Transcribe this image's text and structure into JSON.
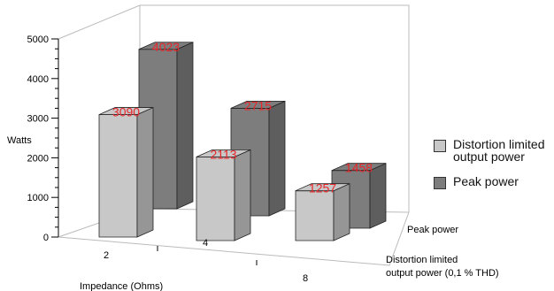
{
  "chart_data": {
    "type": "bar",
    "categories": [
      "2",
      "4",
      "8"
    ],
    "series": [
      {
        "name": "Distortion limited output power",
        "values": [
          3090,
          2113,
          1257
        ]
      },
      {
        "name": "Peak power",
        "values": [
          4023,
          2715,
          1458
        ]
      }
    ],
    "data_labels": [
      [
        "3090",
        "2113",
        "1257"
      ],
      [
        "4023",
        "2715",
        "1458"
      ]
    ],
    "y_ticks": [
      "0",
      "1000",
      "2000",
      "3000",
      "4000",
      "5000"
    ],
    "ylim": [
      0,
      5000
    ],
    "ylabel": "Watts",
    "xlabel": "Impedance (Ohms)",
    "depth_labels": [
      "Peak power",
      "Distortion limited\noutput power (0,1 % THD)"
    ],
    "grid": false,
    "legend_position": "right",
    "colors": {
      "front_bar": "#c8c8c8",
      "back_bar": "#7d7d7d",
      "value_label": "#e8262a",
      "frame": "#bbbbbb"
    }
  },
  "legend": {
    "items": [
      {
        "label": "Distortion limited output power",
        "color": "#c8c8c8"
      },
      {
        "label": "Peak power",
        "color": "#7d7d7d"
      }
    ]
  }
}
